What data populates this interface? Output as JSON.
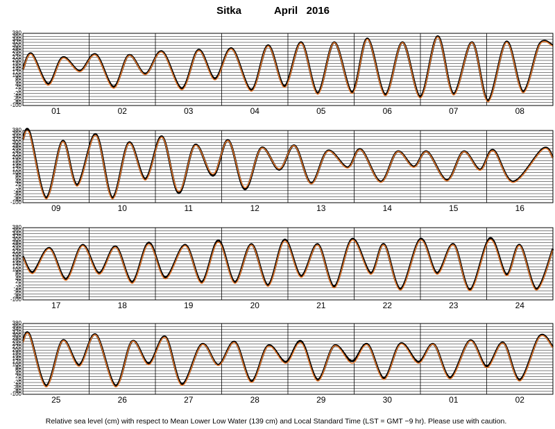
{
  "title": "Sitka",
  "subtitle": "April   2016",
  "footnote": "Relative sea level (cm) with respect to Mean Lower Low Water (139 cm) and Local Standard Time (LST = GMT −9 hr). Please use with caution.",
  "chart_data": [
    {
      "type": "line",
      "xlim": [
        0,
        8
      ],
      "ylim": [
        -100,
        380
      ],
      "yticks": [
        -100,
        -80,
        -60,
        -40,
        -20,
        0,
        20,
        40,
        60,
        80,
        100,
        120,
        140,
        160,
        180,
        200,
        220,
        240,
        260,
        280,
        300,
        320,
        340,
        360,
        380
      ],
      "xticks": [
        {
          "value": 0.5,
          "label": "01"
        },
        {
          "value": 1.5,
          "label": "02"
        },
        {
          "value": 2.5,
          "label": "03"
        },
        {
          "value": 3.5,
          "label": "04"
        },
        {
          "value": 4.5,
          "label": "05"
        },
        {
          "value": 5.5,
          "label": "06"
        },
        {
          "value": 6.5,
          "label": "07"
        },
        {
          "value": 7.5,
          "label": "08"
        }
      ],
      "grid": true,
      "x": [
        0,
        0.13,
        0.38,
        0.6,
        0.86,
        1.1,
        1.37,
        1.6,
        1.85,
        2.1,
        2.4,
        2.65,
        2.9,
        3.15,
        3.45,
        3.7,
        3.95,
        4.2,
        4.45,
        4.7,
        4.97,
        5.2,
        5.47,
        5.73,
        6.0,
        6.26,
        6.5,
        6.78,
        7.02,
        7.3,
        7.55,
        7.8,
        8
      ],
      "series": [
        {
          "color": "#000000",
          "values": [
            140,
            245,
            45,
            220,
            130,
            240,
            25,
            235,
            110,
            260,
            15,
            270,
            80,
            280,
            5,
            300,
            30,
            320,
            -15,
            320,
            -10,
            345,
            -25,
            320,
            -40,
            360,
            -20,
            320,
            -65,
            325,
            -5,
            310,
            300
          ]
        },
        {
          "color": "#e8782a",
          "values": [
            135,
            240,
            35,
            215,
            125,
            235,
            15,
            232,
            105,
            255,
            5,
            265,
            70,
            275,
            -5,
            295,
            20,
            315,
            -25,
            318,
            -20,
            340,
            -35,
            318,
            -50,
            355,
            -30,
            318,
            -75,
            320,
            -15,
            305,
            295
          ]
        }
      ]
    },
    {
      "type": "line",
      "xlim": [
        0,
        8
      ],
      "ylim": [
        -100,
        380
      ],
      "yticks": [
        -100,
        -80,
        -60,
        -40,
        -20,
        0,
        20,
        40,
        60,
        80,
        100,
        120,
        140,
        160,
        180,
        200,
        220,
        240,
        260,
        280,
        300,
        320,
        340,
        360,
        380
      ],
      "xticks": [
        {
          "value": 0.5,
          "label": "09"
        },
        {
          "value": 1.5,
          "label": "10"
        },
        {
          "value": 2.5,
          "label": "11"
        },
        {
          "value": 3.5,
          "label": "12"
        },
        {
          "value": 4.5,
          "label": "13"
        },
        {
          "value": 5.5,
          "label": "14"
        },
        {
          "value": 6.5,
          "label": "15"
        },
        {
          "value": 7.5,
          "label": "16"
        }
      ],
      "grid": true,
      "x": [
        0,
        0.1,
        0.35,
        0.6,
        0.82,
        1.1,
        1.35,
        1.6,
        1.85,
        2.1,
        2.35,
        2.6,
        2.87,
        3.1,
        3.35,
        3.6,
        3.87,
        4.1,
        4.35,
        4.6,
        4.9,
        5.1,
        5.4,
        5.65,
        5.9,
        6.1,
        6.4,
        6.65,
        6.9,
        7.1,
        7.4,
        7.85,
        8
      ],
      "series": [
        {
          "color": "#000000",
          "values": [
            320,
            370,
            -65,
            310,
            20,
            355,
            -65,
            300,
            60,
            340,
            -35,
            285,
            80,
            315,
            -10,
            265,
            120,
            280,
            30,
            245,
            135,
            255,
            40,
            240,
            140,
            240,
            50,
            240,
            120,
            250,
            40,
            260,
            200
          ]
        },
        {
          "color": "#e8782a",
          "values": [
            315,
            360,
            -75,
            305,
            10,
            348,
            -75,
            295,
            50,
            335,
            -25,
            280,
            90,
            312,
            0,
            262,
            125,
            278,
            25,
            242,
            130,
            252,
            35,
            238,
            135,
            238,
            45,
            238,
            115,
            245,
            35,
            255,
            195
          ]
        }
      ]
    },
    {
      "type": "line",
      "xlim": [
        0,
        8
      ],
      "ylim": [
        -100,
        380
      ],
      "yticks": [
        -100,
        -80,
        -60,
        -40,
        -20,
        0,
        20,
        40,
        60,
        80,
        100,
        120,
        140,
        160,
        180,
        200,
        220,
        240,
        260,
        280,
        300,
        320,
        340,
        360,
        380
      ],
      "xticks": [
        {
          "value": 0.5,
          "label": "17"
        },
        {
          "value": 1.5,
          "label": "18"
        },
        {
          "value": 2.5,
          "label": "19"
        },
        {
          "value": 3.5,
          "label": "20"
        },
        {
          "value": 4.5,
          "label": "21"
        },
        {
          "value": 5.5,
          "label": "22"
        },
        {
          "value": 6.5,
          "label": "23"
        },
        {
          "value": 7.5,
          "label": "24"
        }
      ],
      "grid": true,
      "x": [
        0,
        0.15,
        0.4,
        0.65,
        0.9,
        1.15,
        1.4,
        1.65,
        1.9,
        2.15,
        2.45,
        2.7,
        2.95,
        3.2,
        3.45,
        3.7,
        3.95,
        4.2,
        4.45,
        4.7,
        4.97,
        5.25,
        5.45,
        5.7,
        6.0,
        6.25,
        6.5,
        6.75,
        7.05,
        7.3,
        7.5,
        7.75,
        8
      ],
      "series": [
        {
          "color": "#000000",
          "values": [
            190,
            85,
            245,
            40,
            265,
            80,
            255,
            20,
            280,
            50,
            265,
            20,
            295,
            20,
            270,
            0,
            300,
            60,
            270,
            -10,
            305,
            80,
            270,
            -25,
            305,
            80,
            270,
            -30,
            310,
            70,
            265,
            -25,
            240
          ]
        },
        {
          "color": "#e8782a",
          "values": [
            185,
            75,
            240,
            30,
            260,
            70,
            250,
            10,
            272,
            40,
            260,
            10,
            285,
            10,
            265,
            -10,
            292,
            50,
            265,
            -20,
            298,
            70,
            265,
            -35,
            298,
            70,
            265,
            -40,
            300,
            60,
            260,
            -35,
            235
          ]
        }
      ]
    },
    {
      "type": "line",
      "xlim": [
        0,
        8
      ],
      "ylim": [
        -100,
        380
      ],
      "yticks": [
        -100,
        -80,
        -60,
        -40,
        -20,
        0,
        20,
        40,
        60,
        80,
        100,
        120,
        140,
        160,
        180,
        200,
        220,
        240,
        260,
        280,
        300,
        320,
        340,
        360,
        380
      ],
      "xticks": [
        {
          "value": 0.5,
          "label": "25"
        },
        {
          "value": 1.5,
          "label": "26"
        },
        {
          "value": 2.5,
          "label": "27"
        },
        {
          "value": 3.5,
          "label": "28"
        },
        {
          "value": 4.5,
          "label": "29"
        },
        {
          "value": 5.5,
          "label": "30"
        },
        {
          "value": 6.5,
          "label": "01"
        },
        {
          "value": 7.5,
          "label": "02"
        }
      ],
      "grid": true,
      "x": [
        0,
        0.1,
        0.35,
        0.6,
        0.85,
        1.1,
        1.4,
        1.65,
        1.9,
        2.15,
        2.4,
        2.7,
        2.95,
        3.2,
        3.45,
        3.7,
        3.97,
        4.2,
        4.45,
        4.7,
        4.97,
        5.2,
        5.45,
        5.7,
        5.97,
        6.2,
        6.45,
        6.75,
        7.0,
        7.25,
        7.5,
        7.8,
        8
      ],
      "series": [
        {
          "color": "#000000",
          "values": [
            260,
            305,
            -40,
            265,
            100,
            305,
            -40,
            260,
            110,
            290,
            -30,
            240,
            100,
            255,
            -10,
            230,
            120,
            260,
            0,
            230,
            125,
            240,
            10,
            245,
            120,
            240,
            15,
            265,
            90,
            250,
            0,
            295,
            220
          ]
        },
        {
          "color": "#e8782a",
          "values": [
            250,
            300,
            -50,
            262,
            90,
            302,
            -50,
            258,
            100,
            285,
            -40,
            236,
            95,
            250,
            -20,
            225,
            110,
            250,
            -10,
            228,
            110,
            235,
            0,
            240,
            110,
            238,
            5,
            262,
            80,
            246,
            -10,
            290,
            215
          ]
        }
      ]
    }
  ]
}
